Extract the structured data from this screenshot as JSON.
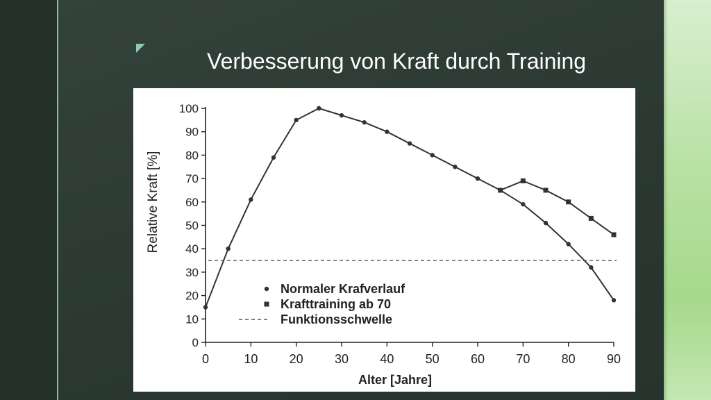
{
  "slide": {
    "title": "Verbesserung von Kraft durch Training"
  },
  "colors": {
    "background": "#2c3a33",
    "accent_rule": "#8fb7a8",
    "corner_mark": "#8ec9c0",
    "right_strip": "#b6e0a0",
    "series": "#333333"
  },
  "chart_data": {
    "type": "line",
    "title": "",
    "xlabel": "Alter [Jahre]",
    "ylabel": "Relative Kraft [%]",
    "xlim": [
      0,
      90
    ],
    "ylim": [
      0,
      100
    ],
    "x_ticks": [
      0,
      10,
      20,
      30,
      40,
      50,
      60,
      70,
      80,
      90
    ],
    "y_ticks": [
      0,
      10,
      20,
      30,
      40,
      50,
      60,
      70,
      80,
      90,
      100
    ],
    "grid": false,
    "legend_position": "bottom-left",
    "series": [
      {
        "name": "Normaler Krafverlauf",
        "marker": "dot",
        "x": [
          0,
          5,
          10,
          15,
          20,
          25,
          30,
          35,
          40,
          45,
          50,
          55,
          60,
          65,
          70,
          75,
          80,
          85,
          90
        ],
        "y": [
          15,
          40,
          61,
          79,
          95,
          100,
          97,
          94,
          90,
          85,
          80,
          75,
          70,
          65,
          59,
          51,
          42,
          32,
          18
        ]
      },
      {
        "name": "Krafttraining ab 70",
        "marker": "square",
        "x": [
          65,
          70,
          75,
          80,
          85,
          90
        ],
        "y": [
          65,
          69,
          65,
          60,
          53,
          46
        ]
      }
    ],
    "reference_lines": [
      {
        "name": "Funktionsschwelle",
        "axis": "y",
        "value": 35,
        "style": "dashed"
      }
    ]
  }
}
